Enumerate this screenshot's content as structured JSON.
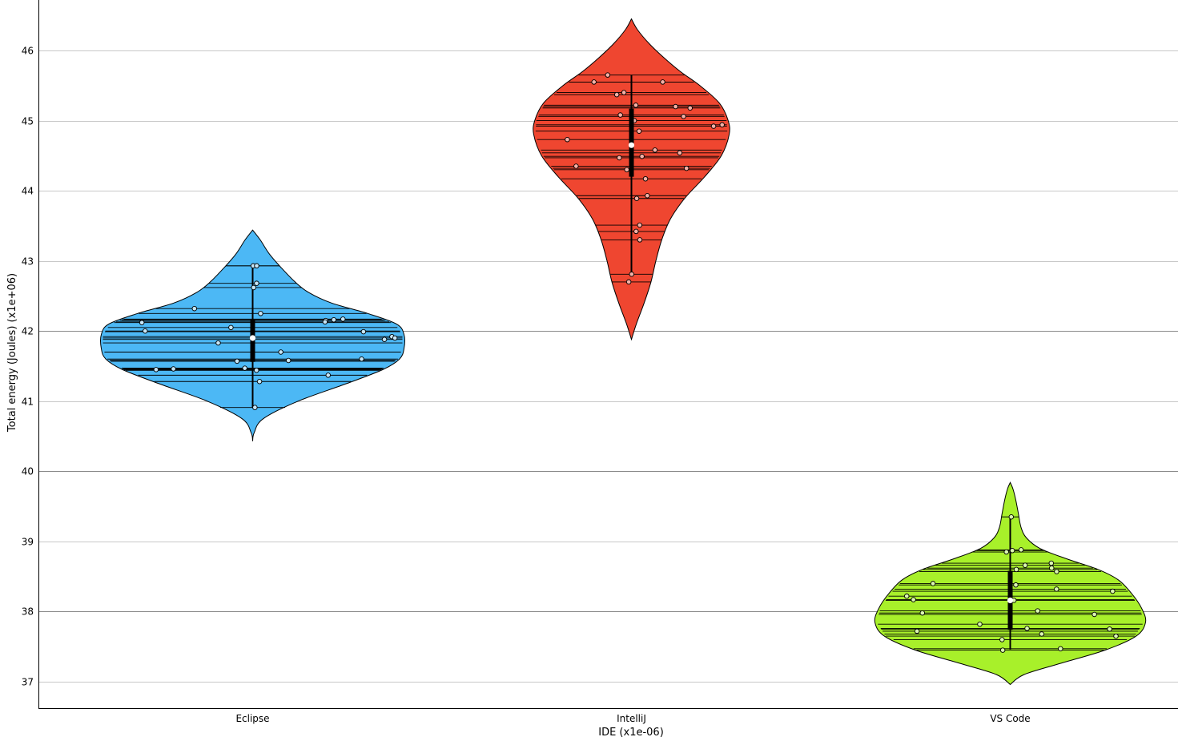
{
  "chart_data": {
    "type": "violin",
    "xlabel": "IDE (x1e-06)",
    "ylabel": "Total energy (Joules) (x1e+06)",
    "ylim": [
      36.6,
      46.8
    ],
    "yticks": [
      37,
      38,
      39,
      40,
      41,
      42,
      43,
      44,
      45,
      46
    ],
    "major_grid": [
      38,
      40,
      42
    ],
    "categories": [
      "Eclipse",
      "IntelliJ",
      "VS Code"
    ],
    "series": [
      {
        "name": "Eclipse",
        "color": "#4cb8f5",
        "point_color": "#c6e6f8",
        "range": [
          40.43,
          43.44
        ],
        "density": [
          [
            40.43,
            0.0
          ],
          [
            40.55,
            0.01
          ],
          [
            40.75,
            0.07
          ],
          [
            41.0,
            0.3
          ],
          [
            41.25,
            0.62
          ],
          [
            41.45,
            0.86
          ],
          [
            41.6,
            0.97
          ],
          [
            41.75,
            1.0
          ],
          [
            41.95,
            1.0
          ],
          [
            42.1,
            0.95
          ],
          [
            42.25,
            0.76
          ],
          [
            42.4,
            0.52
          ],
          [
            42.55,
            0.37
          ],
          [
            42.7,
            0.28
          ],
          [
            42.9,
            0.19
          ],
          [
            43.1,
            0.11
          ],
          [
            43.3,
            0.05
          ],
          [
            43.44,
            0.0
          ]
        ],
        "whisker": [
          40.91,
          42.93
        ],
        "iqr": [
          41.56,
          42.16
        ],
        "median": 41.9,
        "values": [
          42.93,
          42.93,
          42.68,
          42.62,
          42.32,
          42.25,
          42.17,
          42.16,
          42.15,
          42.13,
          42.12,
          42.05,
          42.0,
          41.99,
          41.92,
          41.9,
          41.88,
          41.83,
          41.7,
          41.6,
          41.58,
          41.57,
          41.47,
          41.46,
          41.45,
          41.44,
          41.37,
          41.28,
          40.91
        ],
        "jitter": [
          0.02,
          0.15,
          0.09,
          0.02,
          -0.6,
          0.07,
          0.7,
          0.62,
          0.55,
          0.53,
          -0.8,
          -0.15,
          -0.73,
          0.75,
          0.93,
          0.95,
          0.88,
          -0.23,
          0.19,
          0.75,
          0.25,
          -0.11,
          -0.06,
          -0.61,
          -0.75,
          0.03,
          0.66,
          0.07,
          0.07
        ]
      },
      {
        "name": "IntelliJ",
        "color": "#ef4630",
        "point_color": "#f6b0a6",
        "range": [
          41.88,
          46.45
        ],
        "density": [
          [
            41.88,
            0.0
          ],
          [
            42.1,
            0.05
          ],
          [
            42.4,
            0.13
          ],
          [
            42.7,
            0.2
          ],
          [
            43.0,
            0.25
          ],
          [
            43.3,
            0.31
          ],
          [
            43.6,
            0.4
          ],
          [
            43.9,
            0.55
          ],
          [
            44.2,
            0.75
          ],
          [
            44.5,
            0.92
          ],
          [
            44.8,
            1.0
          ],
          [
            45.0,
            0.99
          ],
          [
            45.25,
            0.9
          ],
          [
            45.5,
            0.7
          ],
          [
            45.7,
            0.5
          ],
          [
            45.9,
            0.33
          ],
          [
            46.1,
            0.18
          ],
          [
            46.3,
            0.06
          ],
          [
            46.45,
            0.0
          ]
        ],
        "whisker": [
          42.81,
          45.65
        ],
        "iqr": [
          44.2,
          45.17
        ],
        "median": 44.65,
        "values": [
          45.65,
          45.55,
          45.55,
          45.4,
          45.37,
          45.22,
          45.2,
          45.18,
          45.08,
          45.06,
          45.0,
          44.94,
          44.92,
          44.85,
          44.73,
          44.58,
          44.54,
          44.49,
          44.47,
          44.35,
          44.32,
          44.3,
          44.17,
          43.93,
          43.89,
          43.51,
          43.42,
          43.3,
          42.81,
          42.7
        ],
        "jitter": [
          -0.45,
          -0.6,
          0.5,
          -0.1,
          -0.19,
          0.05,
          0.5,
          0.66,
          -0.12,
          0.56,
          0.03,
          0.95,
          0.86,
          0.08,
          -0.68,
          0.26,
          0.54,
          0.12,
          -0.14,
          -0.69,
          0.7,
          -0.06,
          0.2,
          0.29,
          0.1,
          0.23,
          0.14,
          0.28,
          0.01,
          -0.14
        ]
      },
      {
        "name": "VS Code",
        "color": "#a8f02a",
        "point_color": "#dbf7b0",
        "range": [
          36.96,
          39.84
        ],
        "density": [
          [
            36.96,
            0.0
          ],
          [
            37.1,
            0.1
          ],
          [
            37.25,
            0.35
          ],
          [
            37.45,
            0.7
          ],
          [
            37.65,
            0.93
          ],
          [
            37.85,
            1.0
          ],
          [
            38.05,
            0.97
          ],
          [
            38.25,
            0.9
          ],
          [
            38.45,
            0.8
          ],
          [
            38.6,
            0.65
          ],
          [
            38.75,
            0.42
          ],
          [
            38.9,
            0.22
          ],
          [
            39.05,
            0.12
          ],
          [
            39.2,
            0.08
          ],
          [
            39.4,
            0.06
          ],
          [
            39.6,
            0.04
          ],
          [
            39.75,
            0.02
          ],
          [
            39.84,
            0.0
          ]
        ],
        "whisker": [
          37.46,
          39.35
        ],
        "iqr": [
          37.74,
          38.58
        ],
        "median": 38.16,
        "values": [
          39.35,
          38.88,
          38.87,
          38.85,
          38.69,
          38.66,
          38.62,
          38.6,
          38.57,
          38.4,
          38.38,
          38.32,
          38.29,
          38.22,
          38.17,
          38.16,
          38.01,
          37.98,
          37.96,
          37.82,
          37.76,
          37.75,
          37.72,
          37.68,
          37.65,
          37.6,
          37.47,
          37.45
        ],
        "jitter": [
          0.12,
          0.33,
          0.06,
          -0.1,
          0.6,
          0.2,
          0.5,
          0.07,
          0.51,
          -0.7,
          0.05,
          0.4,
          0.87,
          -0.85,
          -0.78,
          0.03,
          0.21,
          -0.67,
          0.64,
          -0.23,
          0.13,
          0.77,
          -0.73,
          0.25,
          0.85,
          -0.07,
          0.52,
          -0.08
        ]
      }
    ]
  }
}
